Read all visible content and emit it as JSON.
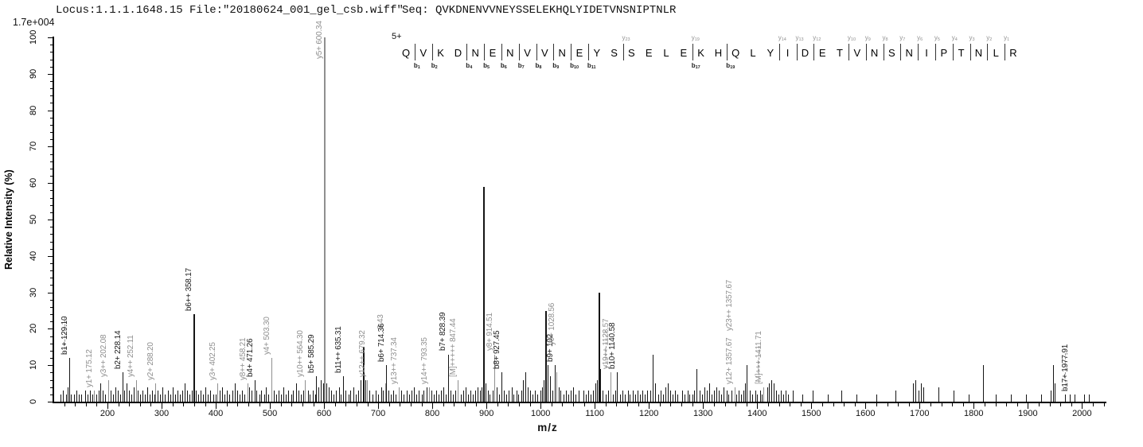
{
  "header": {
    "locus_file": "Locus:1.1.1.1648.15 File:\"20180624_001_gel_csb.wiff\"",
    "seq_display": "Seq: QVKDNENVVNEYSSELEKHQLYIDETVNSNIPTNLR"
  },
  "intensity_scale": "1.7e+004",
  "colors": {
    "b_ion_label": "#1a1a1a",
    "y_ion_label": "#8f8f8f",
    "peak_black": "#151515",
    "peak_gray": "#8f8f8f",
    "axis": "#000000"
  },
  "sequence_annotation": {
    "charge": "5+",
    "residues": "QVKDNENVVNEYSSELEKHQLYIDETVNSNIPTNLR",
    "b_marks": [
      {
        "label": "b1",
        "after": 1
      },
      {
        "label": "b2",
        "after": 2
      },
      {
        "label": "b4",
        "after": 4
      },
      {
        "label": "b5",
        "after": 5
      },
      {
        "label": "b6",
        "after": 6
      },
      {
        "label": "b7",
        "after": 7
      },
      {
        "label": "b8",
        "after": 8
      },
      {
        "label": "b9",
        "after": 9
      },
      {
        "label": "b10",
        "after": 10
      },
      {
        "label": "b11",
        "after": 11
      },
      {
        "label": "b17",
        "after": 17
      },
      {
        "label": "b19",
        "after": 19
      }
    ],
    "y_marks": [
      {
        "label": "y23",
        "after": 13
      },
      {
        "label": "y19",
        "after": 17
      },
      {
        "label": "y14",
        "after": 22
      },
      {
        "label": "y13",
        "after": 23
      },
      {
        "label": "y12",
        "after": 24
      },
      {
        "label": "y10",
        "after": 26
      },
      {
        "label": "y9",
        "after": 27
      },
      {
        "label": "y8",
        "after": 28
      },
      {
        "label": "y7",
        "after": 29
      },
      {
        "label": "y6",
        "after": 30
      },
      {
        "label": "y5",
        "after": 31
      },
      {
        "label": "y4",
        "after": 32
      },
      {
        "label": "y3",
        "after": 33
      },
      {
        "label": "y2",
        "after": 34
      },
      {
        "label": "y1",
        "after": 35
      }
    ]
  },
  "chart_data": {
    "type": "bar",
    "subtype": "MS/MS fragment ion spectrum",
    "title": "",
    "x_axis": {
      "label": "m/z",
      "min": 100,
      "max": 2045,
      "minor_start": 120,
      "minor_end": 2040,
      "major_step": 100,
      "minor_step": 20,
      "first_label": 200,
      "last_label": 2000
    },
    "y_axis": {
      "label": "Relative  Intensity (%)",
      "min": 0,
      "max": 100,
      "major_step": 10,
      "minor_step": 2,
      "base_peak_absolute_intensity": "1.7e+004"
    },
    "labeled_peaks": [
      {
        "ion": "b1",
        "mz": 129.1,
        "intensity": 12,
        "label": "b1+ 129.10",
        "color": "b",
        "dash": true
      },
      {
        "ion": "y1",
        "mz": 175.12,
        "intensity": 3,
        "label": "y1+ 175.12",
        "color": "y"
      },
      {
        "ion": "y3++",
        "mz": 202.08,
        "intensity": 6,
        "label": "y3++ 202.08",
        "color": "y"
      },
      {
        "ion": "b2",
        "mz": 228.14,
        "intensity": 8,
        "label": "b2+ 228.14",
        "color": "b"
      },
      {
        "ion": "y4++",
        "mz": 252.11,
        "intensity": 6,
        "label": "y4++ 252.11",
        "color": "y"
      },
      {
        "ion": "y2",
        "mz": 288.2,
        "intensity": 5,
        "label": "y2+ 288.20",
        "color": "y"
      },
      {
        "ion": "b6++",
        "mz": 358.17,
        "intensity": 24,
        "label": "b6++ 358.17",
        "color": "b"
      },
      {
        "ion": "y3",
        "mz": 402.25,
        "intensity": 5,
        "label": "y3+ 402.25",
        "color": "y"
      },
      {
        "ion": "y8++",
        "mz": 458.21,
        "intensity": 5,
        "label": "y8++ 458.21",
        "color": "y"
      },
      {
        "ion": "b4",
        "mz": 471.26,
        "intensity": 6,
        "label": "b4+ 471.26",
        "color": "b"
      },
      {
        "ion": "y4",
        "mz": 503.3,
        "intensity": 12,
        "label": "y4+ 503.30",
        "color": "y"
      },
      {
        "ion": "y10++",
        "mz": 564.3,
        "intensity": 6,
        "label": "y10++ 564.30",
        "color": "y"
      },
      {
        "ion": "b5",
        "mz": 585.29,
        "intensity": 7,
        "label": "b5+ 585.29",
        "color": "b"
      },
      {
        "ion": "y5",
        "mz": 600.34,
        "intensity": 100,
        "label": "y5+ 600.34",
        "color": "y"
      },
      {
        "ion": "b11++",
        "mz": 635.31,
        "intensity": 7,
        "label": "b11++ 635.31",
        "color": "b"
      },
      {
        "ion": "y12++",
        "mz": 679.32,
        "intensity": 6,
        "label": "y12++ 679.32",
        "color": "y"
      },
      {
        "ion": "y6-occluded",
        "mz": 713.43,
        "intensity": 5,
        "label": "3.43",
        "color": "y",
        "raise": 64
      },
      {
        "ion": "b6",
        "mz": 714.36,
        "intensity": 10,
        "label": "b6+ 714.36",
        "color": "b"
      },
      {
        "ion": "y13++",
        "mz": 737.34,
        "intensity": 4,
        "label": "y13++ 737.34",
        "color": "y"
      },
      {
        "ion": "y14++",
        "mz": 793.35,
        "intensity": 4,
        "label": "y14++ 793.35",
        "color": "y"
      },
      {
        "ion": "b7",
        "mz": 828.39,
        "intensity": 13,
        "label": "b7+ 828.39",
        "color": "b"
      },
      {
        "ion": "M5+",
        "mz": 847.44,
        "intensity": 6,
        "label": "[M]+++++ 847.44",
        "color": "y"
      },
      {
        "ion": "y8",
        "mz": 914.51,
        "intensity": 13,
        "label": "y8+ 914.51",
        "color": "y"
      },
      {
        "ion": "b8",
        "mz": 927.45,
        "intensity": 8,
        "label": "b8+ 927.45",
        "color": "b"
      },
      {
        "ion": "b9",
        "mz": 1026.52,
        "intensity": 10,
        "label": "b9+ 102",
        "color": "b"
      },
      {
        "ion": "y9",
        "mz": 1028.56,
        "intensity": 8,
        "label": "y9+ 1028.56",
        "color": "y",
        "raise": 30
      },
      {
        "ion": "y19++",
        "mz": 1128.57,
        "intensity": 8,
        "label": "y19++ 1128.57",
        "color": "y",
        "dash": true
      },
      {
        "ion": "b10",
        "mz": 1140.58,
        "intensity": 8,
        "label": "b10+ 1140.58",
        "color": "b"
      },
      {
        "ion": "y12",
        "mz": 1357.67,
        "intensity": 4,
        "label": "y12+ 1357.67",
        "color": "y",
        "label2": "y23++ 1357.67"
      },
      {
        "ion": "M3+",
        "mz": 1411.71,
        "intensity": 4,
        "label": "[M]+++ 1411.71",
        "color": "y",
        "dash": true
      },
      {
        "ion": "b17",
        "mz": 1977.91,
        "intensity": 2,
        "label": "b17+ 1977.91",
        "color": "b",
        "dash": true
      }
    ],
    "unlabeled_peaks": [
      [
        113,
        2
      ],
      [
        118,
        3
      ],
      [
        123,
        2
      ],
      [
        127,
        4
      ],
      [
        133,
        2
      ],
      [
        138,
        2
      ],
      [
        142,
        3
      ],
      [
        147,
        2
      ],
      [
        152,
        2
      ],
      [
        158,
        3
      ],
      [
        163,
        2
      ],
      [
        168,
        3
      ],
      [
        172,
        2
      ],
      [
        179,
        2
      ],
      [
        183,
        3
      ],
      [
        187,
        5
      ],
      [
        191,
        3
      ],
      [
        196,
        2
      ],
      [
        206,
        3
      ],
      [
        210,
        2
      ],
      [
        215,
        4
      ],
      [
        219,
        3
      ],
      [
        224,
        2
      ],
      [
        231,
        3
      ],
      [
        235,
        5
      ],
      [
        239,
        3
      ],
      [
        244,
        2
      ],
      [
        248,
        4
      ],
      [
        256,
        3
      ],
      [
        260,
        2
      ],
      [
        265,
        3
      ],
      [
        269,
        2
      ],
      [
        273,
        4
      ],
      [
        278,
        2
      ],
      [
        282,
        3
      ],
      [
        287,
        2
      ],
      [
        293,
        3
      ],
      [
        297,
        2
      ],
      [
        302,
        4
      ],
      [
        306,
        2
      ],
      [
        311,
        3
      ],
      [
        316,
        2
      ],
      [
        320,
        4
      ],
      [
        325,
        2
      ],
      [
        329,
        3
      ],
      [
        334,
        2
      ],
      [
        338,
        3
      ],
      [
        343,
        5
      ],
      [
        347,
        3
      ],
      [
        352,
        2
      ],
      [
        356,
        3
      ],
      [
        363,
        3
      ],
      [
        367,
        2
      ],
      [
        372,
        3
      ],
      [
        376,
        2
      ],
      [
        381,
        4
      ],
      [
        385,
        2
      ],
      [
        390,
        3
      ],
      [
        395,
        2
      ],
      [
        400,
        2
      ],
      [
        407,
        3
      ],
      [
        412,
        4
      ],
      [
        416,
        2
      ],
      [
        421,
        3
      ],
      [
        425,
        2
      ],
      [
        430,
        3
      ],
      [
        435,
        5
      ],
      [
        439,
        3
      ],
      [
        444,
        2
      ],
      [
        449,
        3
      ],
      [
        453,
        2
      ],
      [
        462,
        4
      ],
      [
        466,
        3
      ],
      [
        475,
        3
      ],
      [
        480,
        2
      ],
      [
        484,
        3
      ],
      [
        489,
        2
      ],
      [
        493,
        4
      ],
      [
        497,
        2
      ],
      [
        507,
        3
      ],
      [
        511,
        2
      ],
      [
        516,
        3
      ],
      [
        520,
        2
      ],
      [
        525,
        4
      ],
      [
        529,
        2
      ],
      [
        534,
        3
      ],
      [
        539,
        2
      ],
      [
        543,
        3
      ],
      [
        548,
        5
      ],
      [
        552,
        3
      ],
      [
        557,
        2
      ],
      [
        561,
        3
      ],
      [
        570,
        3
      ],
      [
        574,
        2
      ],
      [
        579,
        3
      ],
      [
        583,
        2
      ],
      [
        590,
        4
      ],
      [
        594,
        6
      ],
      [
        598,
        5
      ],
      [
        604,
        5
      ],
      [
        608,
        4
      ],
      [
        613,
        3
      ],
      [
        618,
        2
      ],
      [
        622,
        3
      ],
      [
        627,
        4
      ],
      [
        631,
        2
      ],
      [
        640,
        3
      ],
      [
        645,
        2
      ],
      [
        649,
        3
      ],
      [
        654,
        4
      ],
      [
        658,
        2
      ],
      [
        663,
        3
      ],
      [
        668,
        6
      ],
      [
        672,
        15
      ],
      [
        676,
        6
      ],
      [
        684,
        3
      ],
      [
        690,
        2
      ],
      [
        695,
        3
      ],
      [
        700,
        2
      ],
      [
        705,
        4
      ],
      [
        709,
        3
      ],
      [
        719,
        3
      ],
      [
        723,
        2
      ],
      [
        728,
        3
      ],
      [
        732,
        2
      ],
      [
        742,
        3
      ],
      [
        747,
        2
      ],
      [
        752,
        3
      ],
      [
        757,
        2
      ],
      [
        761,
        3
      ],
      [
        766,
        4
      ],
      [
        770,
        2
      ],
      [
        775,
        3
      ],
      [
        780,
        2
      ],
      [
        784,
        3
      ],
      [
        789,
        4
      ],
      [
        798,
        3
      ],
      [
        802,
        2
      ],
      [
        807,
        3
      ],
      [
        811,
        2
      ],
      [
        816,
        3
      ],
      [
        820,
        4
      ],
      [
        825,
        2
      ],
      [
        834,
        3
      ],
      [
        838,
        2
      ],
      [
        843,
        3
      ],
      [
        852,
        2
      ],
      [
        857,
        3
      ],
      [
        861,
        4
      ],
      [
        866,
        2
      ],
      [
        870,
        3
      ],
      [
        875,
        2
      ],
      [
        879,
        3
      ],
      [
        884,
        4
      ],
      [
        888,
        3
      ],
      [
        891,
        4
      ],
      [
        894,
        59
      ],
      [
        898,
        5
      ],
      [
        902,
        3
      ],
      [
        906,
        2
      ],
      [
        911,
        3
      ],
      [
        919,
        4
      ],
      [
        923,
        2
      ],
      [
        932,
        3
      ],
      [
        937,
        2
      ],
      [
        941,
        3
      ],
      [
        946,
        4
      ],
      [
        950,
        2
      ],
      [
        955,
        3
      ],
      [
        959,
        2
      ],
      [
        964,
        3
      ],
      [
        968,
        6
      ],
      [
        972,
        8
      ],
      [
        976,
        4
      ],
      [
        981,
        3
      ],
      [
        985,
        2
      ],
      [
        990,
        3
      ],
      [
        994,
        2
      ],
      [
        999,
        3
      ],
      [
        1003,
        4
      ],
      [
        1006,
        6
      ],
      [
        1009,
        25
      ],
      [
        1013,
        10
      ],
      [
        1017,
        7
      ],
      [
        1021,
        3
      ],
      [
        1033,
        4
      ],
      [
        1037,
        3
      ],
      [
        1042,
        2
      ],
      [
        1046,
        3
      ],
      [
        1051,
        2
      ],
      [
        1056,
        3
      ],
      [
        1060,
        4
      ],
      [
        1065,
        2
      ],
      [
        1070,
        3
      ],
      [
        1079,
        3
      ],
      [
        1083,
        2
      ],
      [
        1088,
        3
      ],
      [
        1092,
        2
      ],
      [
        1097,
        3
      ],
      [
        1101,
        5
      ],
      [
        1104,
        6
      ],
      [
        1107,
        30
      ],
      [
        1110,
        9
      ],
      [
        1115,
        3
      ],
      [
        1120,
        2
      ],
      [
        1124,
        3
      ],
      [
        1134,
        2
      ],
      [
        1138,
        3
      ],
      [
        1147,
        2
      ],
      [
        1151,
        3
      ],
      [
        1156,
        2
      ],
      [
        1161,
        3
      ],
      [
        1165,
        2
      ],
      [
        1170,
        3
      ],
      [
        1174,
        2
      ],
      [
        1179,
        3
      ],
      [
        1183,
        2
      ],
      [
        1188,
        3
      ],
      [
        1192,
        2
      ],
      [
        1197,
        3
      ],
      [
        1203,
        3
      ],
      [
        1207,
        13
      ],
      [
        1212,
        5
      ],
      [
        1217,
        2
      ],
      [
        1221,
        3
      ],
      [
        1226,
        2
      ],
      [
        1231,
        4
      ],
      [
        1235,
        5
      ],
      [
        1239,
        3
      ],
      [
        1244,
        2
      ],
      [
        1248,
        3
      ],
      [
        1253,
        2
      ],
      [
        1262,
        3
      ],
      [
        1266,
        2
      ],
      [
        1271,
        3
      ],
      [
        1275,
        2
      ],
      [
        1280,
        2
      ],
      [
        1284,
        3
      ],
      [
        1288,
        9
      ],
      [
        1293,
        3
      ],
      [
        1298,
        2
      ],
      [
        1302,
        4
      ],
      [
        1307,
        3
      ],
      [
        1311,
        5
      ],
      [
        1316,
        2
      ],
      [
        1320,
        3
      ],
      [
        1325,
        4
      ],
      [
        1329,
        3
      ],
      [
        1334,
        2
      ],
      [
        1338,
        4
      ],
      [
        1343,
        3
      ],
      [
        1347,
        2
      ],
      [
        1352,
        3
      ],
      [
        1361,
        2
      ],
      [
        1365,
        3
      ],
      [
        1370,
        2
      ],
      [
        1374,
        3
      ],
      [
        1378,
        5
      ],
      [
        1381,
        10
      ],
      [
        1387,
        3
      ],
      [
        1391,
        2
      ],
      [
        1396,
        3
      ],
      [
        1400,
        2
      ],
      [
        1405,
        3
      ],
      [
        1409,
        2
      ],
      [
        1418,
        4
      ],
      [
        1422,
        5
      ],
      [
        1426,
        6
      ],
      [
        1430,
        5
      ],
      [
        1435,
        3
      ],
      [
        1439,
        2
      ],
      [
        1444,
        3
      ],
      [
        1448,
        2
      ],
      [
        1453,
        3
      ],
      [
        1457,
        2
      ],
      [
        1466,
        3
      ],
      [
        1484,
        2
      ],
      [
        1503,
        3
      ],
      [
        1531,
        2
      ],
      [
        1556,
        3
      ],
      [
        1584,
        2
      ],
      [
        1620,
        2
      ],
      [
        1656,
        3
      ],
      [
        1687,
        5
      ],
      [
        1692,
        6
      ],
      [
        1698,
        3
      ],
      [
        1703,
        5
      ],
      [
        1707,
        4
      ],
      [
        1735,
        4
      ],
      [
        1762,
        3
      ],
      [
        1790,
        2
      ],
      [
        1817,
        10
      ],
      [
        1841,
        2
      ],
      [
        1869,
        2
      ],
      [
        1896,
        2
      ],
      [
        1924,
        2
      ],
      [
        1942,
        3
      ],
      [
        1946,
        10
      ],
      [
        1950,
        5
      ],
      [
        1968,
        2
      ],
      [
        1986,
        2
      ],
      [
        2004,
        2
      ],
      [
        2013,
        2
      ]
    ]
  }
}
